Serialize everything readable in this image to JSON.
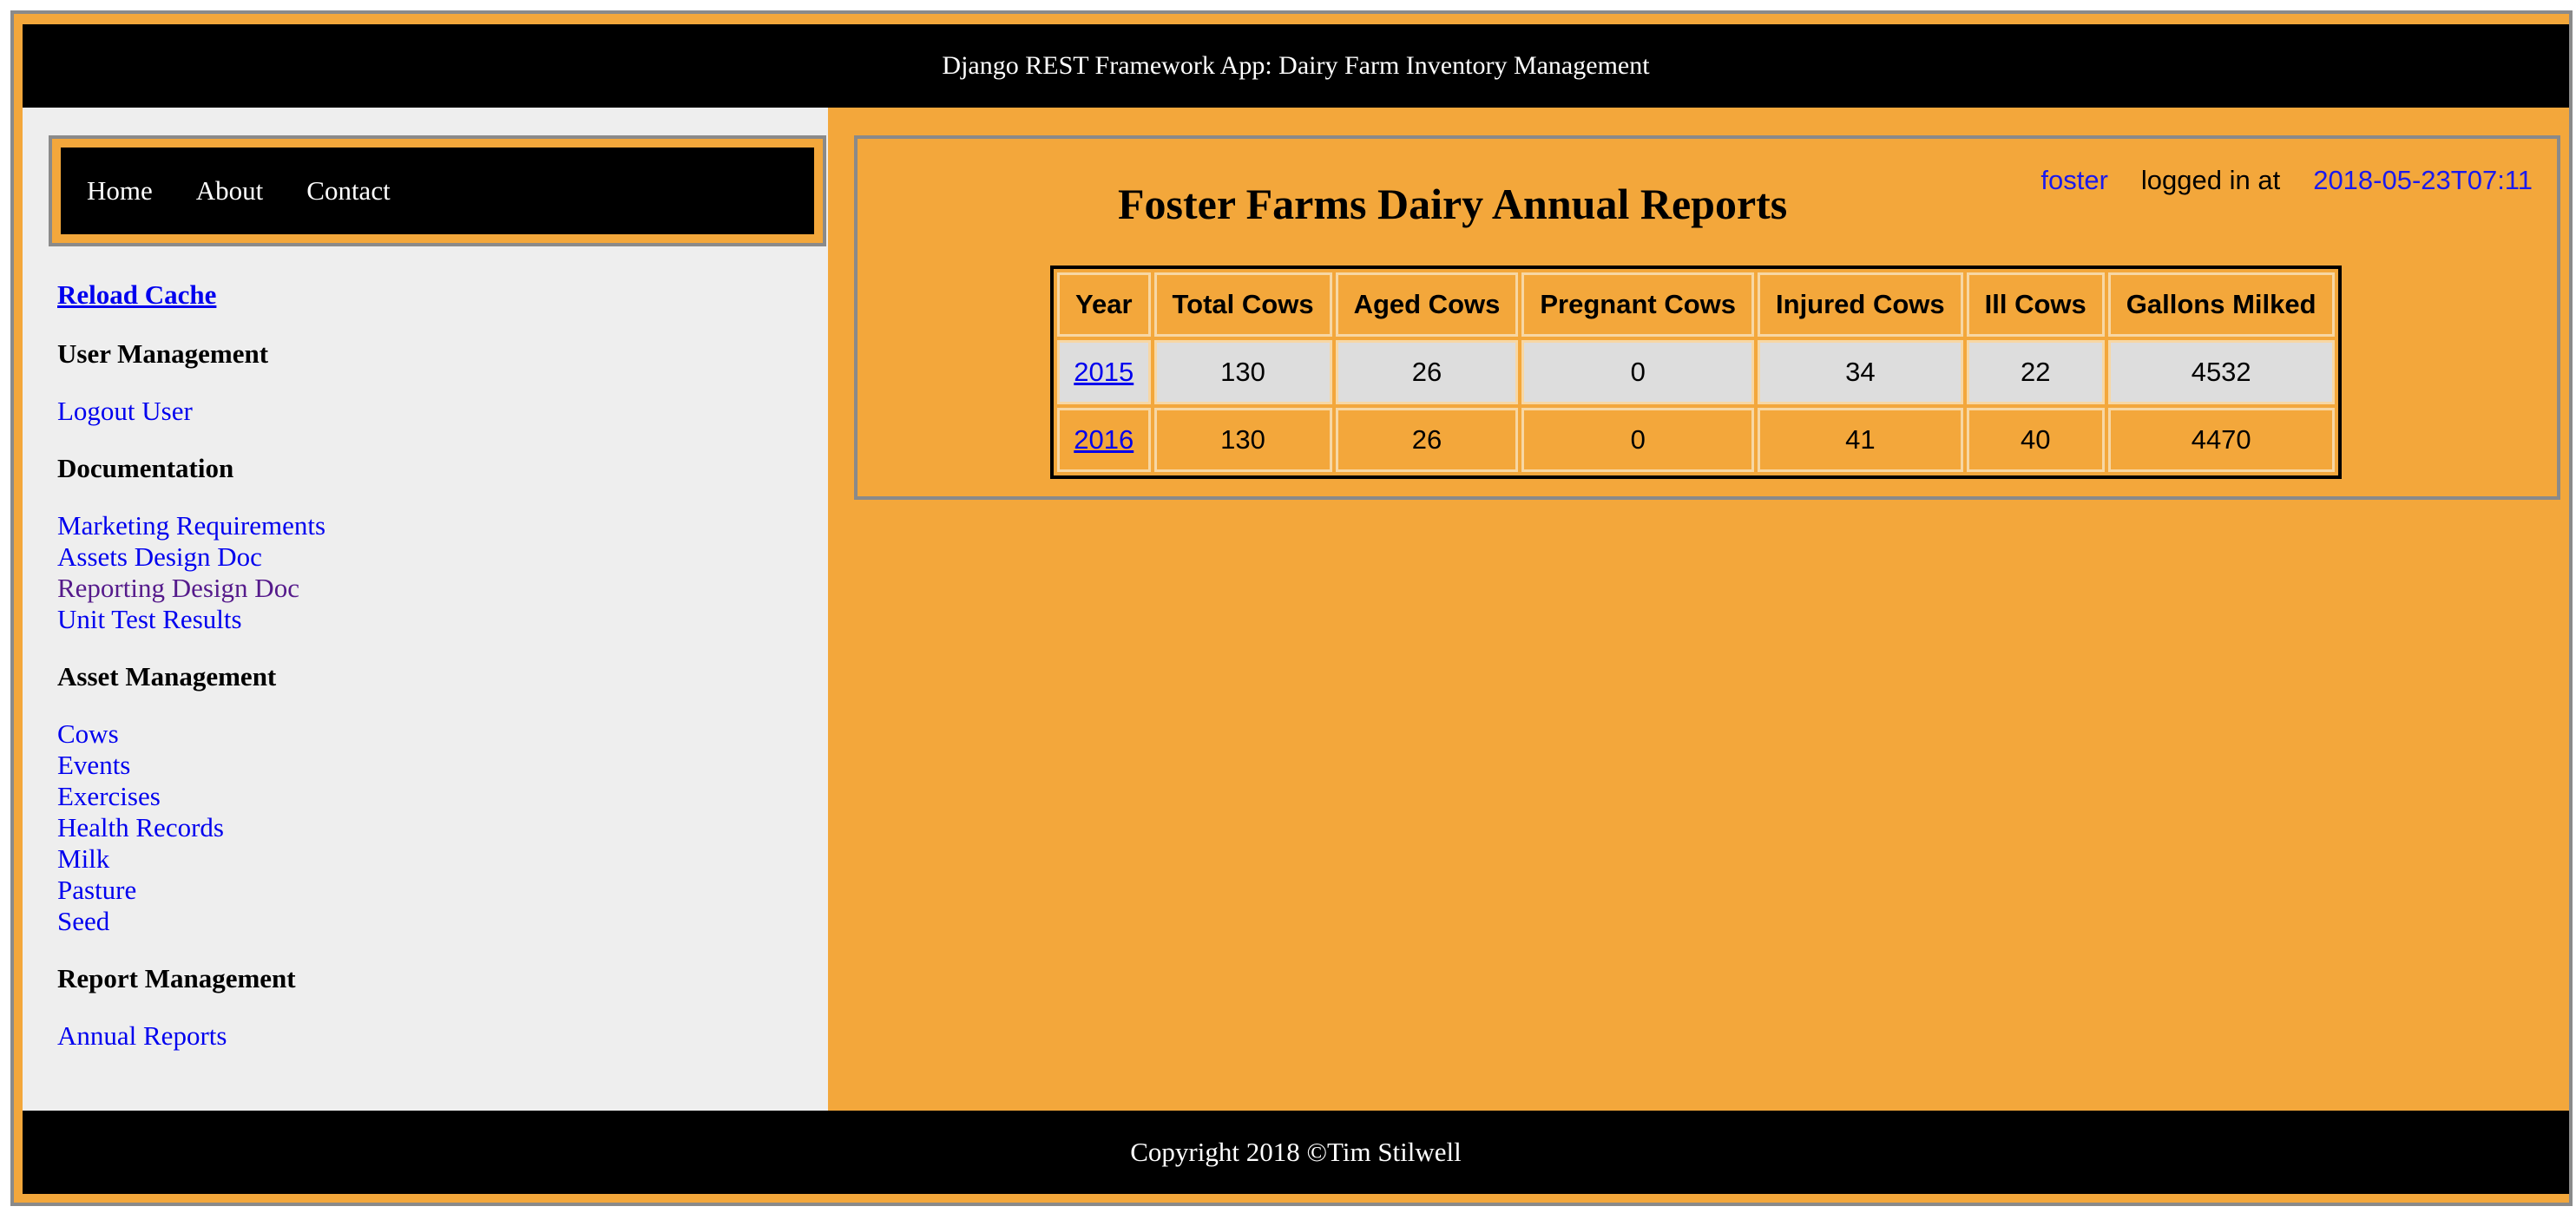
{
  "header": {
    "title": "Django REST Framework App: Dairy Farm Inventory Management"
  },
  "nav": {
    "items": [
      {
        "label": "Home"
      },
      {
        "label": "About"
      },
      {
        "label": "Contact"
      }
    ]
  },
  "sidebar": {
    "reload_label": "Reload Cache",
    "sections": [
      {
        "heading": "User Management",
        "links": [
          {
            "label": "Logout User"
          }
        ]
      },
      {
        "heading": "Documentation",
        "links": [
          {
            "label": "Marketing Requirements"
          },
          {
            "label": "Assets Design Doc"
          },
          {
            "label": "Reporting Design Doc"
          },
          {
            "label": "Unit Test Results"
          }
        ]
      },
      {
        "heading": "Asset Management",
        "links": [
          {
            "label": "Cows"
          },
          {
            "label": "Events"
          },
          {
            "label": "Exercises"
          },
          {
            "label": "Health Records"
          },
          {
            "label": "Milk"
          },
          {
            "label": "Pasture"
          },
          {
            "label": "Seed"
          }
        ]
      },
      {
        "heading": "Report Management",
        "links": [
          {
            "label": "Annual Reports"
          }
        ]
      }
    ]
  },
  "main": {
    "title": "Foster Farms Dairy Annual Reports",
    "login": {
      "user": "foster",
      "text": "logged in at",
      "time": "2018-05-23T07:11"
    },
    "table": {
      "columns": [
        "Year",
        "Total Cows",
        "Aged Cows",
        "Pregnant Cows",
        "Injured Cows",
        "Ill Cows",
        "Gallons Milked"
      ],
      "rows": [
        [
          "2015",
          "130",
          "26",
          "0",
          "34",
          "22",
          "4532"
        ],
        [
          "2016",
          "130",
          "26",
          "0",
          "41",
          "40",
          "4470"
        ]
      ]
    }
  },
  "footer": {
    "text": "Copyright 2018 ©Tim Stilwell"
  },
  "colors": {
    "accent": "#f3a73b",
    "header_bg": "#000000",
    "sidebar_bg": "#eeeeee",
    "link": "#0000ee"
  }
}
